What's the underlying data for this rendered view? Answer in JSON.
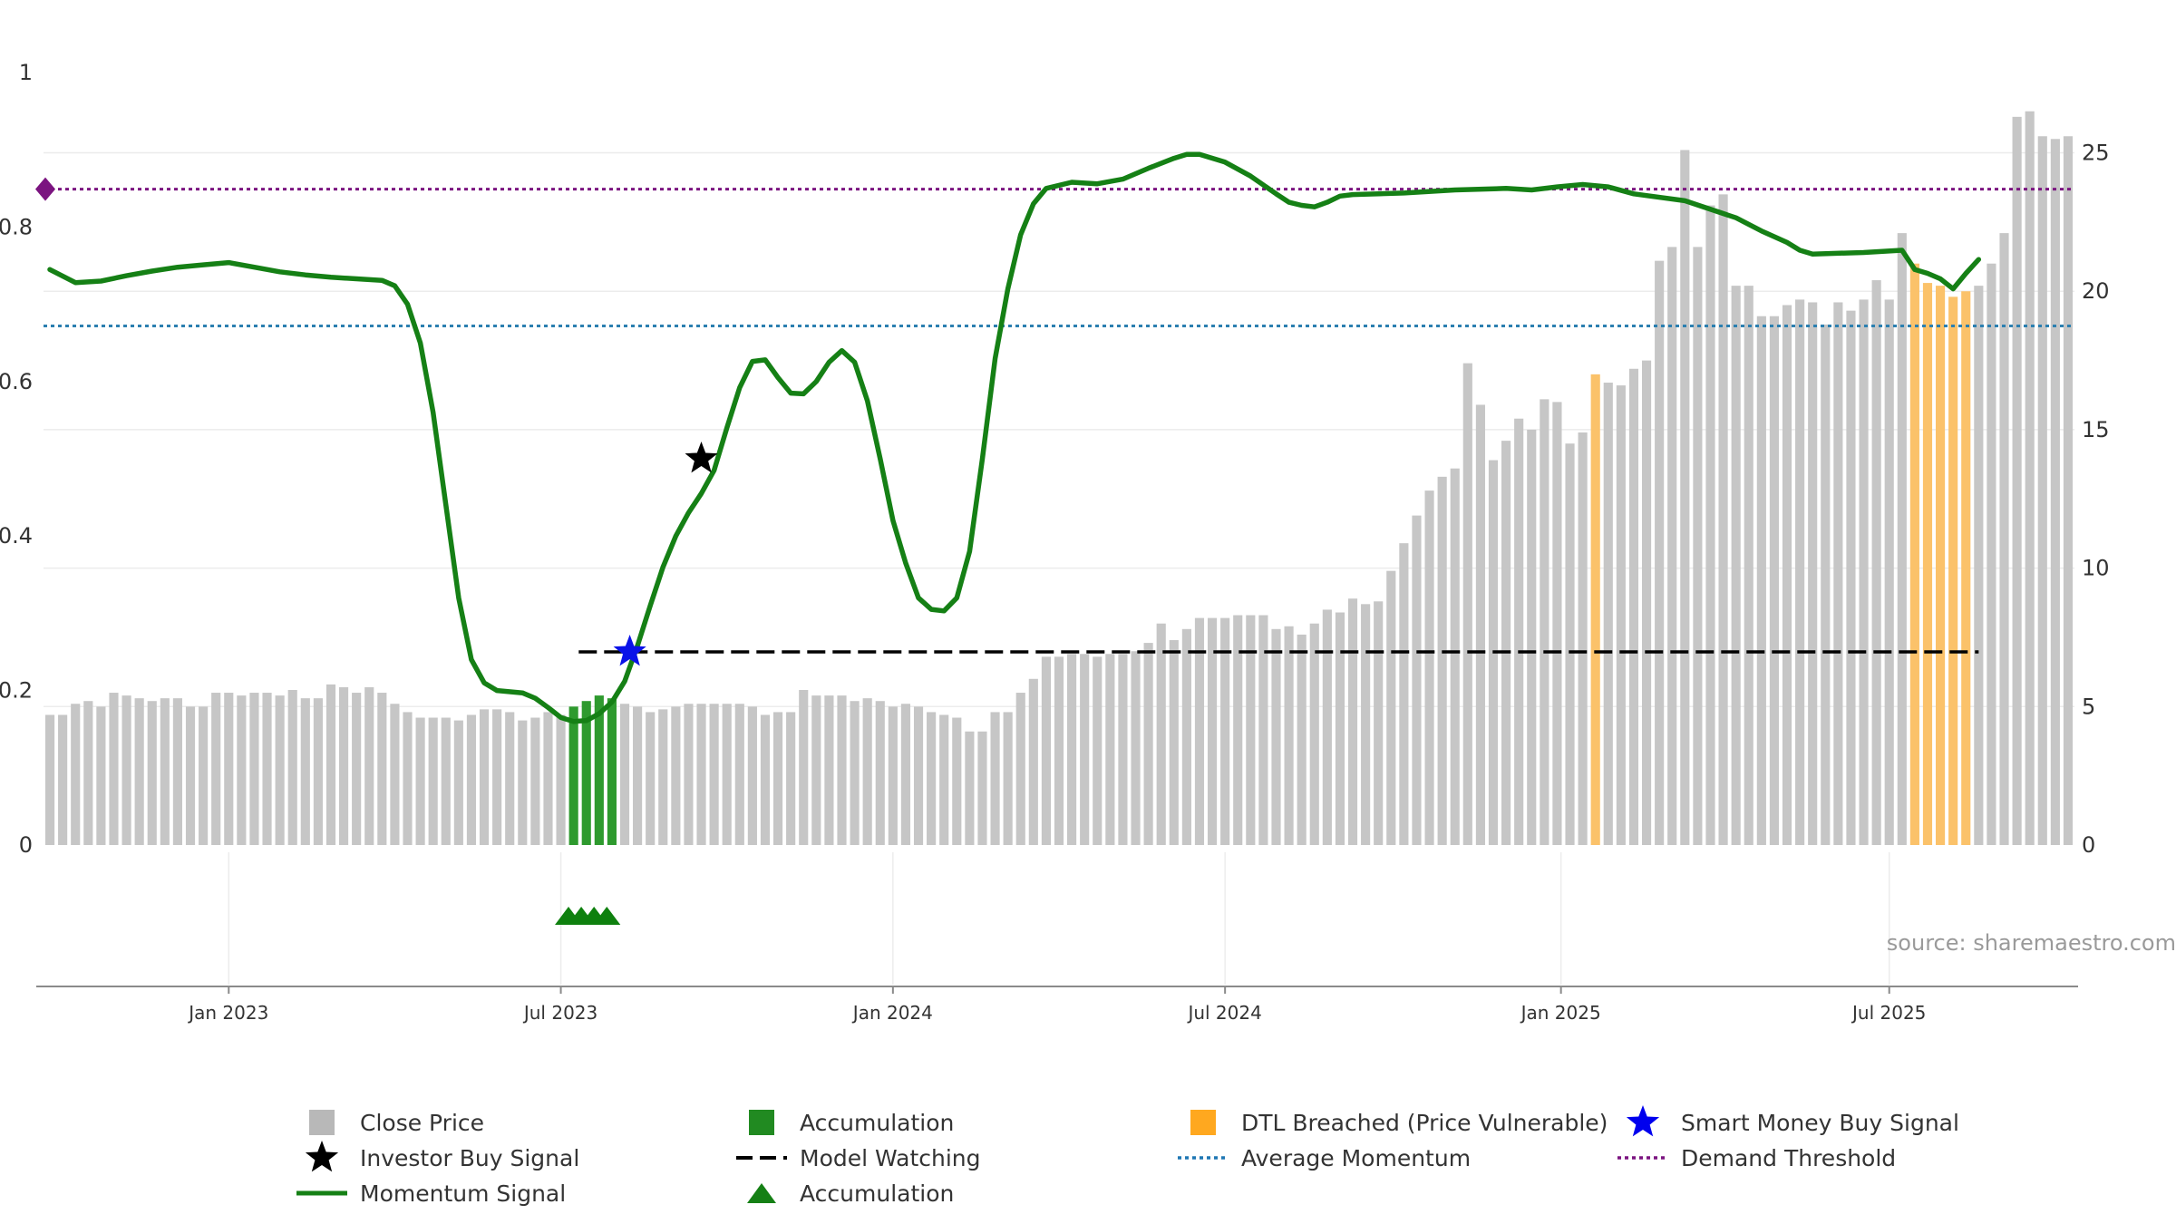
{
  "chart_data": {
    "type": "bar+line",
    "left_axis": {
      "ylim": [
        0,
        1
      ],
      "ticks": [
        0,
        0.2,
        0.4,
        0.6,
        0.8
      ],
      "tick_labels": [
        "0",
        "0.2",
        "0.4",
        "0.6",
        "0.8"
      ],
      "top_label": "1"
    },
    "right_axis": {
      "ylim": [
        0,
        27.9
      ],
      "ticks": [
        0,
        5,
        10,
        15,
        20,
        25
      ],
      "tick_labels": [
        "0",
        "5",
        "10",
        "15",
        "20",
        "25"
      ]
    },
    "x_axis": {
      "ticks": [
        {
          "label": "Jan 2023",
          "week": 14
        },
        {
          "label": "Jul 2023",
          "week": 40
        },
        {
          "label": "Jan 2024",
          "week": 66
        },
        {
          "label": "Jul 2024",
          "week": 92
        },
        {
          "label": "Jan 2025",
          "week": 118.3
        },
        {
          "label": "Jul 2025",
          "week": 144
        }
      ]
    },
    "close_price": [
      4.7,
      4.7,
      5.1,
      5.2,
      5.0,
      5.5,
      5.4,
      5.3,
      5.2,
      5.3,
      5.3,
      5.0,
      5.0,
      5.5,
      5.5,
      5.4,
      5.5,
      5.5,
      5.4,
      5.6,
      5.3,
      5.3,
      5.8,
      5.7,
      5.5,
      5.7,
      5.5,
      5.1,
      4.8,
      4.6,
      4.6,
      4.6,
      4.5,
      4.7,
      4.9,
      4.9,
      4.8,
      4.5,
      4.6,
      4.8,
      4.7,
      5.0,
      5.2,
      5.4,
      5.3,
      5.1,
      5.0,
      4.8,
      4.9,
      5.0,
      5.1,
      5.1,
      5.1,
      5.1,
      5.1,
      5.0,
      4.7,
      4.8,
      4.8,
      5.6,
      5.4,
      5.4,
      5.4,
      5.2,
      5.3,
      5.2,
      5.0,
      5.1,
      5.0,
      4.8,
      4.7,
      4.6,
      4.1,
      4.1,
      4.8,
      4.8,
      5.5,
      6.0,
      6.8,
      6.8,
      6.9,
      6.9,
      6.8,
      6.9,
      6.9,
      7.0,
      7.3,
      8.0,
      7.4,
      7.8,
      8.2,
      8.2,
      8.2,
      8.3,
      8.3,
      8.3,
      7.8,
      7.9,
      7.6,
      8.0,
      8.5,
      8.4,
      8.9,
      8.7,
      8.8,
      9.9,
      10.9,
      11.9,
      12.8,
      13.3,
      13.6,
      17.4,
      15.9,
      13.9,
      14.6,
      15.4,
      15.0,
      16.1,
      16.0,
      14.5,
      14.9,
      17.0,
      16.7,
      16.6,
      17.2,
      17.5,
      21.1,
      21.6,
      25.1,
      21.6,
      23.1,
      23.5,
      20.2,
      20.2,
      19.1,
      19.1,
      19.5,
      19.7,
      19.6,
      18.8,
      19.6,
      19.3,
      19.7,
      20.4,
      19.7,
      22.1,
      21.0,
      20.3,
      20.2,
      19.8,
      20.0,
      20.2,
      21.0,
      22.1,
      26.3,
      26.5,
      25.6,
      25.5,
      25.6
    ],
    "accumulation_weeks": [
      41,
      42,
      43,
      44
    ],
    "dtl_breached_weeks": [
      121,
      146,
      147,
      148,
      149,
      150
    ],
    "momentum_signal": [
      [
        0,
        0.745
      ],
      [
        2,
        0.728
      ],
      [
        4,
        0.73
      ],
      [
        6,
        0.737
      ],
      [
        8,
        0.743
      ],
      [
        10,
        0.748
      ],
      [
        12,
        0.751
      ],
      [
        14,
        0.754
      ],
      [
        16,
        0.748
      ],
      [
        18,
        0.742
      ],
      [
        20,
        0.738
      ],
      [
        22,
        0.735
      ],
      [
        24,
        0.733
      ],
      [
        26,
        0.731
      ],
      [
        27,
        0.724
      ],
      [
        28,
        0.7
      ],
      [
        29,
        0.65
      ],
      [
        30,
        0.56
      ],
      [
        31,
        0.44
      ],
      [
        32,
        0.32
      ],
      [
        33,
        0.24
      ],
      [
        34,
        0.21
      ],
      [
        35,
        0.2
      ],
      [
        37,
        0.197
      ],
      [
        38,
        0.19
      ],
      [
        39,
        0.178
      ],
      [
        40,
        0.165
      ],
      [
        41,
        0.16
      ],
      [
        42,
        0.161
      ],
      [
        43,
        0.17
      ],
      [
        44,
        0.185
      ],
      [
        45,
        0.212
      ],
      [
        46,
        0.258
      ],
      [
        47,
        0.31
      ],
      [
        48,
        0.36
      ],
      [
        49,
        0.4
      ],
      [
        50,
        0.43
      ],
      [
        51,
        0.455
      ],
      [
        52,
        0.485
      ],
      [
        53,
        0.54
      ],
      [
        54,
        0.592
      ],
      [
        55,
        0.626
      ],
      [
        56,
        0.628
      ],
      [
        57,
        0.605
      ],
      [
        58,
        0.585
      ],
      [
        59,
        0.584
      ],
      [
        60,
        0.6
      ],
      [
        61,
        0.625
      ],
      [
        62,
        0.64
      ],
      [
        63,
        0.625
      ],
      [
        64,
        0.575
      ],
      [
        65,
        0.5
      ],
      [
        66,
        0.42
      ],
      [
        67,
        0.365
      ],
      [
        68,
        0.32
      ],
      [
        69,
        0.305
      ],
      [
        70,
        0.303
      ],
      [
        71,
        0.32
      ],
      [
        72,
        0.38
      ],
      [
        73,
        0.5
      ],
      [
        74,
        0.63
      ],
      [
        75,
        0.72
      ],
      [
        76,
        0.79
      ],
      [
        77,
        0.83
      ],
      [
        78,
        0.85
      ],
      [
        80,
        0.858
      ],
      [
        82,
        0.856
      ],
      [
        84,
        0.862
      ],
      [
        86,
        0.876
      ],
      [
        88,
        0.889
      ],
      [
        89,
        0.894
      ],
      [
        90,
        0.894
      ],
      [
        92,
        0.884
      ],
      [
        94,
        0.866
      ],
      [
        96,
        0.843
      ],
      [
        97,
        0.832
      ],
      [
        98,
        0.828
      ],
      [
        99,
        0.826
      ],
      [
        100,
        0.832
      ],
      [
        101,
        0.84
      ],
      [
        102,
        0.842
      ],
      [
        106,
        0.844
      ],
      [
        110,
        0.848
      ],
      [
        114,
        0.85
      ],
      [
        116,
        0.848
      ],
      [
        118,
        0.852
      ],
      [
        120,
        0.855
      ],
      [
        122,
        0.852
      ],
      [
        124,
        0.843
      ],
      [
        128,
        0.834
      ],
      [
        132,
        0.812
      ],
      [
        134,
        0.795
      ],
      [
        136,
        0.78
      ],
      [
        137,
        0.77
      ],
      [
        138,
        0.765
      ],
      [
        142,
        0.767
      ],
      [
        145,
        0.77
      ],
      [
        146,
        0.745
      ],
      [
        147,
        0.74
      ],
      [
        148,
        0.733
      ],
      [
        149,
        0.72
      ],
      [
        150,
        0.74
      ],
      [
        151,
        0.758
      ]
    ],
    "average_momentum": 0.672,
    "demand_threshold": 0.849,
    "model_watching": {
      "value": 0.25,
      "start_week": 41.4,
      "end_week": 151
    },
    "signals": [
      {
        "type": "smart_money_buy",
        "week": 45.4,
        "value": 0.25
      },
      {
        "type": "investor_buy",
        "week": 51,
        "value": 0.5
      }
    ],
    "demand_marker": {
      "week": 0,
      "value": 0.849
    },
    "accumulation_triangle_weeks": [
      40.6,
      41.6,
      42.6,
      43.6
    ],
    "legend": [
      {
        "label": "Close Price",
        "kind": "square",
        "color": "#b8b8b8"
      },
      {
        "label": "Accumulation",
        "kind": "square",
        "color": "#218a21"
      },
      {
        "label": "DTL Breached (Price Vulnerable)",
        "kind": "square",
        "color": "#ffa81f"
      },
      {
        "label": "Smart Money Buy Signal",
        "kind": "star",
        "color": "#0000ee"
      },
      {
        "label": "Investor Buy Signal",
        "kind": "star",
        "color": "#000000"
      },
      {
        "label": "Model Watching",
        "kind": "dash",
        "color": "#000000"
      },
      {
        "label": "Average Momentum",
        "kind": "dot",
        "color": "#1f77b4"
      },
      {
        "label": "Demand Threshold",
        "kind": "dot",
        "color": "#7b1480"
      },
      {
        "label": "Momentum Signal",
        "kind": "line",
        "color": "#158015"
      },
      {
        "label": "Accumulation",
        "kind": "triangle",
        "color": "#158015"
      }
    ],
    "source": "source: sharemaestro.com",
    "colors": {
      "bar": "#c6c6c6",
      "accumulation": "#2e9a2e",
      "dtl": "#fdd18c",
      "dtl_strong": "#fbc26a",
      "momentum": "#158015",
      "avg_momentum": "#2b7fb0",
      "demand": "#7b1480",
      "model_watching": "#000000",
      "smart_money": "#0a12e8",
      "investor": "#000000",
      "triangle": "#0e800e"
    }
  }
}
